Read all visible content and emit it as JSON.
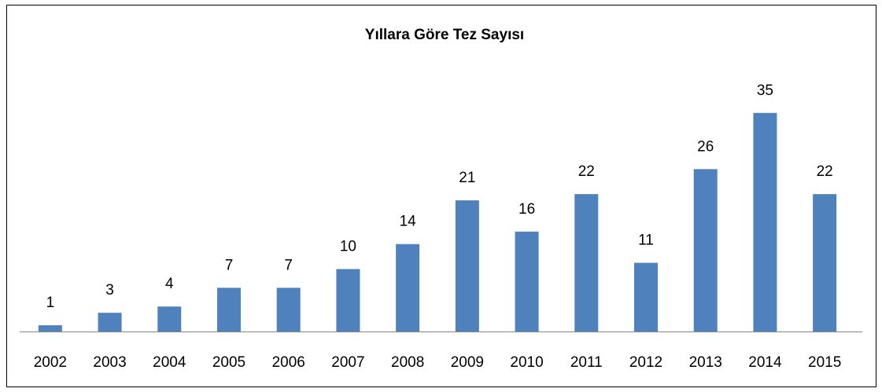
{
  "chart_data": {
    "type": "bar",
    "title": "Yıllara Göre Tez Sayısı",
    "categories": [
      "2002",
      "2003",
      "2004",
      "2005",
      "2006",
      "2007",
      "2008",
      "2009",
      "2010",
      "2011",
      "2012",
      "2013",
      "2014",
      "2015"
    ],
    "values": [
      1,
      3,
      4,
      7,
      7,
      10,
      14,
      21,
      16,
      22,
      11,
      26,
      35,
      22
    ],
    "color": "#4f81bd",
    "ylim": [
      0,
      40
    ],
    "data_labels": true
  }
}
